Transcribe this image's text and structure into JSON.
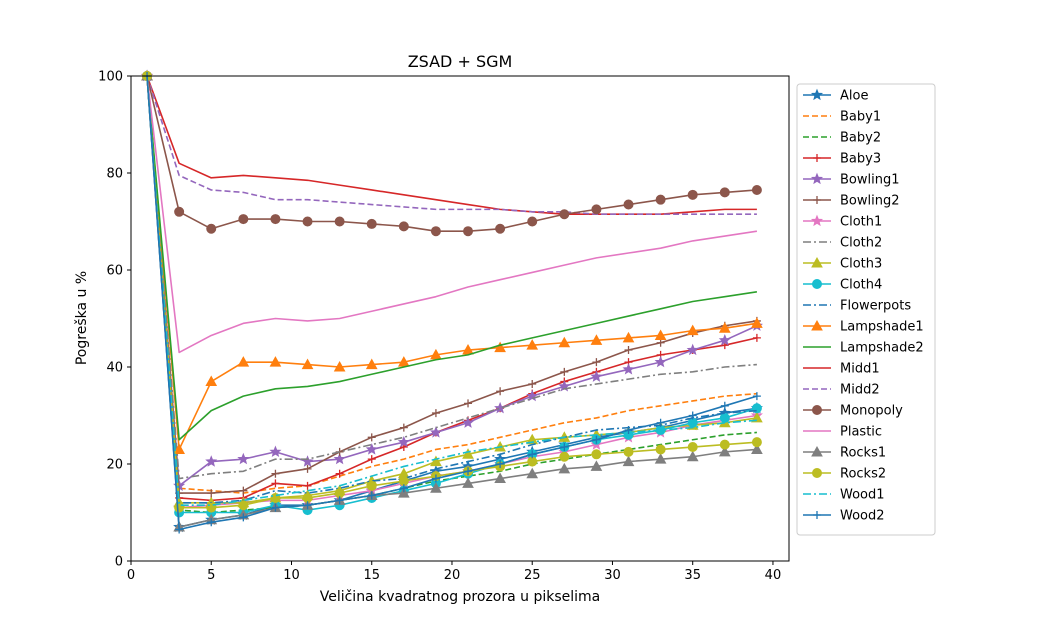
{
  "chart_data": {
    "type": "line",
    "title": "ZSAD + SGM",
    "xlabel": "Veličina kvadratnog prozora u pikselima",
    "ylabel": "Pogreška u %",
    "xlim": [
      0,
      41
    ],
    "ylim": [
      0,
      100
    ],
    "xticks": [
      0,
      5,
      10,
      15,
      20,
      25,
      30,
      35,
      40
    ],
    "yticks": [
      0,
      20,
      40,
      60,
      80,
      100
    ],
    "grid": false,
    "legend_position": "outside right",
    "x": [
      1,
      3,
      5,
      7,
      9,
      11,
      13,
      15,
      17,
      19,
      21,
      23,
      25,
      27,
      29,
      31,
      33,
      35,
      37,
      39
    ],
    "series": [
      {
        "name": "Aloe",
        "color": "#1f77b4",
        "dash": "solid",
        "marker": "star",
        "values": [
          100,
          7.0,
          8.5,
          9.5,
          11.5,
          11.5,
          12.5,
          14.5,
          16.5,
          18.5,
          19.5,
          21.0,
          22.5,
          24.0,
          25.5,
          26.5,
          27.5,
          29.0,
          30.5,
          31.5
        ]
      },
      {
        "name": "Baby1",
        "color": "#ff7f0e",
        "dash": "dashed",
        "marker": "none",
        "values": [
          100,
          15.0,
          14.5,
          14.0,
          15.0,
          15.5,
          17.5,
          19.5,
          21.0,
          23.0,
          24.0,
          25.5,
          27.0,
          28.5,
          29.5,
          31.0,
          32.0,
          33.0,
          34.0,
          34.5
        ]
      },
      {
        "name": "Baby2",
        "color": "#2ca02c",
        "dash": "dashed",
        "marker": "none",
        "values": [
          100,
          10.5,
          10.0,
          10.5,
          11.0,
          11.5,
          12.5,
          13.5,
          15.0,
          16.5,
          17.5,
          18.5,
          20.0,
          21.0,
          22.0,
          23.0,
          24.0,
          25.0,
          26.0,
          26.5
        ]
      },
      {
        "name": "Baby3",
        "color": "#d62728",
        "dash": "solid",
        "marker": "plus",
        "values": [
          100,
          13.0,
          12.5,
          13.0,
          16.0,
          15.5,
          18.0,
          21.0,
          23.5,
          26.5,
          29.0,
          31.5,
          34.5,
          37.0,
          39.0,
          41.0,
          42.5,
          43.5,
          44.5,
          46.0
        ]
      },
      {
        "name": "Bowling1",
        "color": "#9467bd",
        "dash": "solid",
        "marker": "star",
        "values": [
          100,
          15.5,
          20.5,
          21.0,
          22.5,
          20.5,
          21.0,
          23.0,
          24.5,
          26.5,
          28.5,
          31.5,
          34.0,
          36.0,
          38.0,
          39.5,
          41.0,
          43.5,
          45.5,
          48.5
        ]
      },
      {
        "name": "Bowling2",
        "color": "#8c564b",
        "dash": "solid",
        "marker": "plus",
        "values": [
          100,
          14.0,
          14.0,
          14.5,
          18.0,
          19.0,
          22.5,
          25.5,
          27.5,
          30.5,
          32.5,
          35.0,
          36.5,
          39.0,
          41.0,
          43.5,
          45.0,
          47.0,
          48.5,
          49.5
        ]
      },
      {
        "name": "Cloth1",
        "color": "#e377c2",
        "dash": "solid",
        "marker": "star",
        "values": [
          100,
          11.0,
          11.5,
          12.0,
          12.5,
          12.5,
          13.5,
          14.5,
          16.0,
          17.5,
          18.5,
          20.0,
          21.5,
          22.5,
          24.0,
          25.5,
          26.5,
          28.0,
          29.0,
          30.0
        ]
      },
      {
        "name": "Cloth2",
        "color": "#7f7f7f",
        "dash": "dashdot",
        "marker": "none",
        "values": [
          100,
          17.0,
          18.0,
          18.5,
          21.0,
          21.0,
          22.5,
          24.0,
          25.5,
          27.5,
          29.5,
          31.5,
          33.5,
          35.5,
          36.5,
          37.5,
          38.5,
          39.0,
          40.0,
          40.5
        ]
      },
      {
        "name": "Cloth3",
        "color": "#bcbd22",
        "dash": "solid",
        "marker": "triangle",
        "values": [
          100,
          12.0,
          12.0,
          12.0,
          13.0,
          13.5,
          14.5,
          16.5,
          18.0,
          20.5,
          22.0,
          23.5,
          25.0,
          25.5,
          26.0,
          26.5,
          27.5,
          28.0,
          28.5,
          29.5
        ]
      },
      {
        "name": "Cloth4",
        "color": "#17becf",
        "dash": "solid",
        "marker": "circle",
        "values": [
          100,
          10.0,
          10.0,
          10.0,
          11.5,
          10.5,
          11.5,
          13.0,
          14.5,
          16.0,
          18.0,
          20.0,
          22.0,
          23.5,
          25.0,
          26.0,
          27.0,
          28.5,
          29.5,
          31.5
        ]
      },
      {
        "name": "Flowerpots",
        "color": "#1f77b4",
        "dash": "dashdot",
        "marker": "none",
        "values": [
          100,
          12.0,
          12.0,
          12.5,
          14.5,
          14.0,
          15.0,
          16.5,
          17.0,
          19.0,
          20.5,
          22.0,
          24.0,
          25.5,
          27.0,
          27.5,
          28.0,
          29.5,
          30.5,
          31.0
        ]
      },
      {
        "name": "Lampshade1",
        "color": "#ff7f0e",
        "dash": "solid",
        "marker": "triangle",
        "values": [
          100,
          23.0,
          37.0,
          41.0,
          41.0,
          40.5,
          40.0,
          40.5,
          41.0,
          42.5,
          43.5,
          44.0,
          44.5,
          45.0,
          45.5,
          46.0,
          46.5,
          47.5,
          48.0,
          49.0
        ]
      },
      {
        "name": "Lampshade2",
        "color": "#2ca02c",
        "dash": "solid",
        "marker": "none",
        "values": [
          100,
          25.0,
          31.0,
          34.0,
          35.5,
          36.0,
          37.0,
          38.5,
          40.0,
          41.5,
          42.5,
          44.5,
          46.0,
          47.5,
          49.0,
          50.5,
          52.0,
          53.5,
          54.5,
          55.5
        ]
      },
      {
        "name": "Midd1",
        "color": "#d62728",
        "dash": "solid",
        "marker": "none",
        "values": [
          100,
          82.0,
          79.0,
          79.5,
          79.0,
          78.5,
          77.5,
          76.5,
          75.5,
          74.5,
          73.5,
          72.5,
          72.0,
          71.5,
          71.5,
          71.5,
          71.5,
          72.0,
          72.5,
          72.5
        ]
      },
      {
        "name": "Midd2",
        "color": "#9467bd",
        "dash": "dashed",
        "marker": "none",
        "values": [
          100,
          79.5,
          76.5,
          76.0,
          74.5,
          74.5,
          74.0,
          73.5,
          73.0,
          72.5,
          72.5,
          72.5,
          72.0,
          72.0,
          71.5,
          71.5,
          71.5,
          71.5,
          71.5,
          71.5
        ]
      },
      {
        "name": "Monopoly",
        "color": "#8c564b",
        "dash": "solid",
        "marker": "circle",
        "values": [
          100,
          72.0,
          68.5,
          70.5,
          70.5,
          70.0,
          70.0,
          69.5,
          69.0,
          68.0,
          68.0,
          68.5,
          70.0,
          71.5,
          72.5,
          73.5,
          74.5,
          75.5,
          76.0,
          76.5
        ]
      },
      {
        "name": "Plastic",
        "color": "#e377c2",
        "dash": "solid",
        "marker": "none",
        "values": [
          100,
          43.0,
          46.5,
          49.0,
          50.0,
          49.5,
          50.0,
          51.5,
          53.0,
          54.5,
          56.5,
          58.0,
          59.5,
          61.0,
          62.5,
          63.5,
          64.5,
          66.0,
          67.0,
          68.0
        ]
      },
      {
        "name": "Rocks1",
        "color": "#7f7f7f",
        "dash": "solid",
        "marker": "triangle",
        "values": [
          100,
          7.0,
          8.5,
          9.5,
          11.0,
          11.5,
          12.5,
          13.5,
          14.0,
          15.0,
          16.0,
          17.0,
          18.0,
          19.0,
          19.5,
          20.5,
          21.0,
          21.5,
          22.5,
          23.0
        ]
      },
      {
        "name": "Rocks2",
        "color": "#bcbd22",
        "dash": "solid",
        "marker": "circle",
        "values": [
          100,
          11.0,
          11.0,
          11.5,
          13.0,
          13.0,
          14.0,
          15.5,
          16.5,
          17.5,
          18.5,
          19.5,
          20.5,
          21.5,
          22.0,
          22.5,
          23.0,
          23.5,
          24.0,
          24.5
        ]
      },
      {
        "name": "Wood1",
        "color": "#17becf",
        "dash": "dashdot",
        "marker": "none",
        "values": [
          100,
          11.5,
          11.5,
          12.5,
          13.5,
          14.5,
          15.5,
          17.5,
          19.5,
          21.0,
          22.5,
          23.5,
          24.5,
          25.5,
          26.0,
          26.5,
          27.0,
          27.5,
          28.5,
          29.0
        ]
      },
      {
        "name": "Wood2",
        "color": "#1f77b4",
        "dash": "solid",
        "marker": "plus",
        "values": [
          100,
          6.5,
          8.0,
          9.0,
          11.0,
          11.5,
          12.5,
          13.5,
          15.0,
          17.0,
          18.5,
          20.0,
          22.0,
          23.5,
          25.0,
          27.0,
          28.5,
          30.0,
          32.0,
          34.0
        ]
      }
    ]
  }
}
